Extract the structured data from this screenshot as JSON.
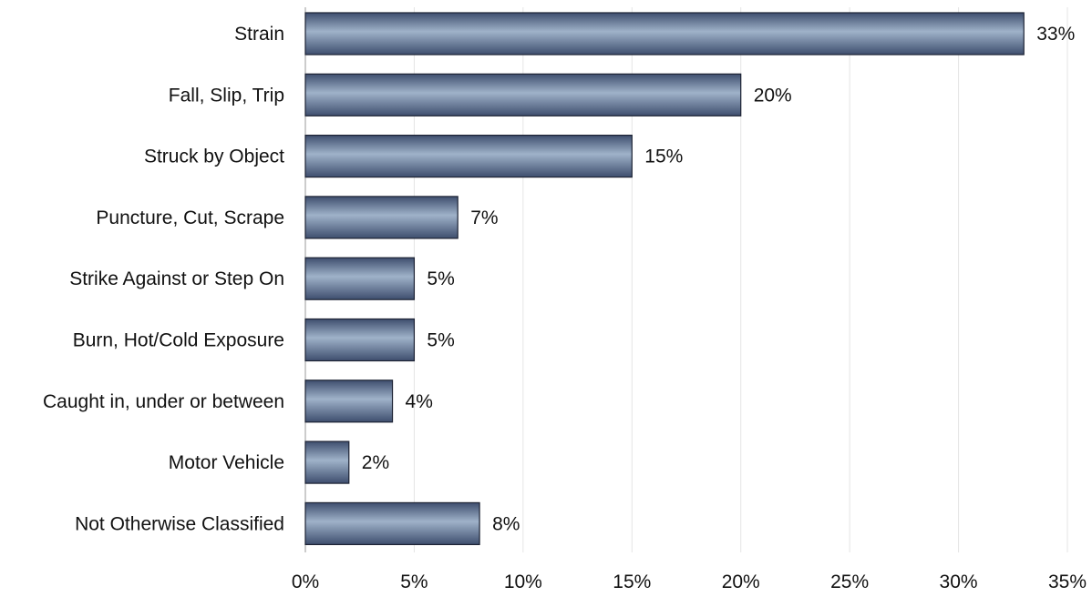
{
  "chart_data": {
    "type": "bar",
    "orientation": "horizontal",
    "title": "",
    "xlabel": "",
    "ylabel": "",
    "categories": [
      "Strain",
      "Fall, Slip, Trip",
      "Struck by Object",
      "Puncture, Cut, Scrape",
      "Strike Against or Step On",
      "Burn, Hot/Cold Exposure",
      "Caught in, under or between",
      "Motor Vehicle",
      "Not Otherwise Classified"
    ],
    "values": [
      33,
      20,
      15,
      7,
      5,
      5,
      4,
      2,
      8
    ],
    "data_labels": [
      "33%",
      "20%",
      "15%",
      "7%",
      "5%",
      "5%",
      "4%",
      "2%",
      "8%"
    ],
    "xlim": [
      0,
      35
    ],
    "x_ticks": [
      0,
      5,
      10,
      15,
      20,
      25,
      30,
      35
    ],
    "x_tick_labels": [
      "0%",
      "5%",
      "10%",
      "15%",
      "20%",
      "25%",
      "30%",
      "35%"
    ],
    "grid": "vertical, faint",
    "legend": "none",
    "colors": {
      "bar_fill_dark": "#3e4e6e",
      "bar_fill_light": "#9fb2c9",
      "bar_edge": "#1c2233"
    }
  }
}
